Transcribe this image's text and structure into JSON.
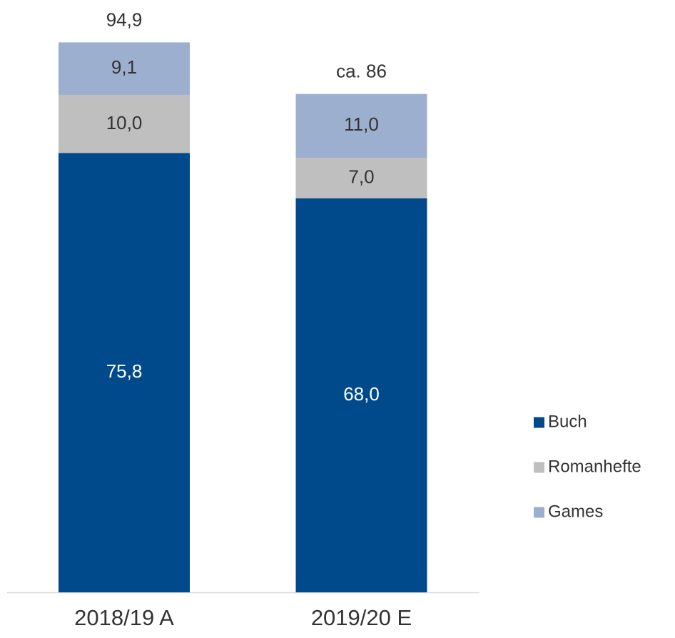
{
  "chart_data": {
    "type": "stacked_bar",
    "categories": [
      "2018/19 A",
      "2019/20 E"
    ],
    "series": [
      {
        "name": "Buch",
        "color": "#004a8b",
        "values": [
          75.8,
          68.0
        ],
        "value_labels": [
          "75,8",
          "68,0"
        ]
      },
      {
        "name": "Romanhefte",
        "color": "#bfbfbf",
        "values": [
          10.0,
          7.0
        ],
        "value_labels": [
          "10,0",
          "7,0"
        ]
      },
      {
        "name": "Games",
        "color": "#9dafcf",
        "values": [
          9.1,
          11.0
        ],
        "value_labels": [
          "9,1",
          "11,0"
        ]
      }
    ],
    "totals": [
      94.9,
      86
    ],
    "total_labels": [
      "94,9",
      "ca. 86"
    ],
    "ylim": [
      0,
      100
    ],
    "legend": "right"
  }
}
